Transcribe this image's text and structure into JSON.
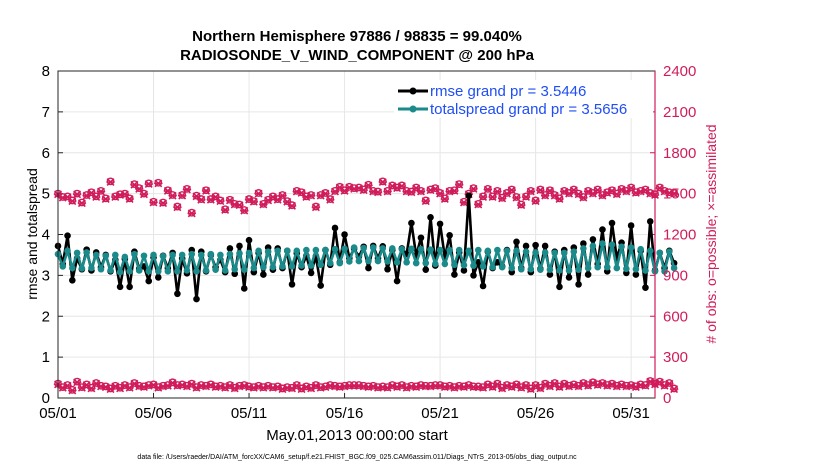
{
  "chart_data": {
    "type": "line",
    "title_line1": "Northern Hemisphere 97886 / 98835 = 99.040%",
    "title_line2": "RADIOSONDE_V_WIND_COMPONENT @ 200 hPa",
    "ylabel_left": "rmse and totalspread",
    "ylabel_right": "# of obs: o=possible; ×=assimilated",
    "xlabel": "May.01,2013 00:00:00 start",
    "footnote": "data file: /Users/raeder/DAI/ATM_forcXX/CAM6_setup/f.e21.FHIST_BGC.f09_025.CAM6assim.011/Diags_NTrS_2013-05/obs_diag_output.nc",
    "ylim_left": [
      0,
      8
    ],
    "ylim_right": [
      0,
      2400
    ],
    "xlim": [
      0,
      31.25
    ],
    "yticks_left": [
      0,
      1,
      2,
      3,
      4,
      5,
      6,
      7,
      8
    ],
    "yticks_right": [
      0,
      300,
      600,
      900,
      1200,
      1500,
      1800,
      2100,
      2400
    ],
    "xtick_values": [
      0,
      5,
      10,
      15,
      20,
      25,
      30
    ],
    "xtick_labels": [
      "05/01",
      "05/06",
      "05/11",
      "05/16",
      "05/21",
      "05/26",
      "05/31"
    ],
    "grid": true,
    "colors": {
      "rmse": "#000000",
      "spread": "#1a8a8a",
      "obs": "#d01c5b",
      "legend_text": "#1f4ef5"
    },
    "series": [
      {
        "name": "rmse grand pr = 3.5446",
        "axis": "left",
        "marker": "circle",
        "values": [
          3.72,
          3.28,
          3.97,
          2.88,
          3.42,
          3.15,
          3.63,
          3.12,
          3.56,
          3.2,
          3.5,
          3.1,
          3.38,
          2.72,
          3.4,
          2.72,
          3.58,
          3.16,
          3.22,
          2.86,
          3.44,
          2.95,
          3.48,
          3.18,
          3.55,
          2.55,
          3.41,
          3.05,
          3.62,
          2.42,
          3.58,
          3.1,
          3.5,
          3.2,
          3.38,
          3.08,
          3.66,
          3.04,
          3.72,
          2.68,
          3.86,
          3.08,
          3.55,
          3.02,
          3.68,
          3.14,
          3.66,
          3.18,
          3.6,
          2.78,
          3.54,
          3.2,
          3.48,
          3.06,
          3.47,
          2.75,
          3.62,
          3.26,
          4.16,
          3.32,
          4.0,
          3.42,
          3.65,
          3.46,
          3.7,
          3.18,
          3.72,
          3.42,
          3.71,
          3.15,
          3.62,
          2.86,
          3.66,
          3.52,
          4.28,
          3.48,
          3.92,
          3.14,
          4.42,
          3.24,
          4.26,
          3.44,
          3.98,
          3.02,
          3.56,
          3.12,
          4.95,
          3.0,
          3.32,
          2.74,
          3.58,
          3.18,
          3.32,
          3.22,
          3.62,
          3.08,
          3.82,
          3.18,
          3.72,
          3.08,
          3.74,
          3.16,
          3.72,
          3.02,
          3.58,
          2.72,
          3.62,
          2.95,
          3.68,
          2.78,
          3.78,
          3.02,
          3.88,
          3.28,
          4.12,
          3.1,
          4.28,
          3.42,
          3.8,
          3.06,
          4.22,
          3.02,
          3.6,
          2.7,
          4.32,
          3.12,
          3.55,
          3.18,
          3.6,
          3.3
        ]
      },
      {
        "name": "totalspread grand pr = 3.5656",
        "axis": "left",
        "marker": "circle",
        "values": [
          3.52,
          3.22,
          3.6,
          3.18,
          3.55,
          3.17,
          3.56,
          3.18,
          3.5,
          3.15,
          3.48,
          3.12,
          3.5,
          3.08,
          3.45,
          3.1,
          3.52,
          3.12,
          3.48,
          3.1,
          3.5,
          3.1,
          3.47,
          3.1,
          3.5,
          3.1,
          3.5,
          3.12,
          3.52,
          3.1,
          3.5,
          3.12,
          3.52,
          3.14,
          3.5,
          3.12,
          3.52,
          3.15,
          3.54,
          3.14,
          3.55,
          3.18,
          3.6,
          3.2,
          3.58,
          3.2,
          3.6,
          3.22,
          3.6,
          3.22,
          3.6,
          3.24,
          3.62,
          3.24,
          3.62,
          3.26,
          3.62,
          3.3,
          3.64,
          3.3,
          3.65,
          3.34,
          3.68,
          3.35,
          3.67,
          3.35,
          3.68,
          3.35,
          3.66,
          3.34,
          3.66,
          3.32,
          3.64,
          3.32,
          3.65,
          3.3,
          3.64,
          3.3,
          3.63,
          3.28,
          3.62,
          3.28,
          3.62,
          3.26,
          3.62,
          3.25,
          3.6,
          3.24,
          3.62,
          3.22,
          3.6,
          3.2,
          3.62,
          3.2,
          3.6,
          3.18,
          3.6,
          3.15,
          3.58,
          3.15,
          3.56,
          3.14,
          3.56,
          3.14,
          3.55,
          3.12,
          3.55,
          3.12,
          3.58,
          3.14,
          3.66,
          3.18,
          3.72,
          3.2,
          3.78,
          3.2,
          3.75,
          3.18,
          3.7,
          3.16,
          3.68,
          3.15,
          3.64,
          3.12,
          3.6,
          3.1,
          3.55,
          3.1,
          3.58,
          3.18
        ]
      },
      {
        "name": "possible",
        "axis": "right",
        "marker": "o",
        "values": [
          1500,
          1475,
          1480,
          1450,
          1500,
          1435,
          1490,
          1510,
          1480,
          1520,
          1465,
          1590,
          1480,
          1495,
          1500,
          1465,
          1570,
          1540,
          1500,
          1575,
          1440,
          1580,
          1435,
          1525,
          1490,
          1405,
          1490,
          1535,
          1360,
          1485,
          1460,
          1525,
          1460,
          1480,
          1450,
          1385,
          1455,
          1425,
          1420,
          1380,
          1460,
          1445,
          1505,
          1425,
          1455,
          1480,
          1460,
          1490,
          1445,
          1415,
          1520,
          1510,
          1480,
          1490,
          1405,
          1490,
          1505,
          1460,
          1520,
          1550,
          1525,
          1550,
          1540,
          1545,
          1530,
          1565,
          1520,
          1515,
          1590,
          1520,
          1560,
          1545,
          1560,
          1520,
          1515,
          1545,
          1520,
          1450,
          1530,
          1540,
          1505,
          1465,
          1520,
          1525,
          1570,
          1440,
          1500,
          1540,
          1425,
          1480,
          1535,
          1480,
          1520,
          1470,
          1505,
          1530,
          1475,
          1420,
          1480,
          1520,
          1450,
          1530,
          1490,
          1525,
          1490,
          1465,
          1520,
          1505,
          1530,
          1500,
          1475,
          1520,
          1505,
          1530,
          1490,
          1510,
          1525,
          1500,
          1535,
          1520,
          1545,
          1510,
          1520,
          1530,
          1505,
          1495,
          1545,
          1520,
          1510,
          1505
        ]
      },
      {
        "name": "assimilated",
        "axis": "right",
        "marker": "x",
        "values": [
          1495,
          1470,
          1475,
          1445,
          1495,
          1430,
          1485,
          1505,
          1475,
          1515,
          1460,
          1585,
          1475,
          1490,
          1495,
          1460,
          1565,
          1535,
          1495,
          1570,
          1435,
          1575,
          1430,
          1520,
          1485,
          1400,
          1485,
          1530,
          1355,
          1480,
          1455,
          1520,
          1455,
          1475,
          1445,
          1380,
          1450,
          1420,
          1415,
          1375,
          1455,
          1440,
          1500,
          1420,
          1450,
          1475,
          1455,
          1485,
          1440,
          1410,
          1515,
          1505,
          1475,
          1485,
          1400,
          1485,
          1500,
          1455,
          1515,
          1545,
          1520,
          1545,
          1535,
          1540,
          1525,
          1560,
          1515,
          1510,
          1585,
          1515,
          1555,
          1540,
          1555,
          1515,
          1510,
          1540,
          1515,
          1445,
          1525,
          1535,
          1500,
          1460,
          1515,
          1520,
          1565,
          1435,
          1495,
          1535,
          1420,
          1475,
          1530,
          1475,
          1515,
          1465,
          1500,
          1525,
          1470,
          1415,
          1475,
          1515,
          1445,
          1525,
          1485,
          1520,
          1485,
          1460,
          1515,
          1500,
          1525,
          1495,
          1470,
          1515,
          1500,
          1525,
          1485,
          1505,
          1520,
          1495,
          1530,
          1515,
          1540,
          1505,
          1515,
          1525,
          1500,
          1490,
          1540,
          1515,
          1505,
          1500
        ]
      },
      {
        "name": "possible (low)",
        "axis": "right",
        "marker": "o",
        "values": [
          105,
          80,
          95,
          60,
          120,
          80,
          100,
          75,
          110,
          90,
          85,
          70,
          90,
          75,
          95,
          80,
          110,
          90,
          85,
          95,
          100,
          80,
          90,
          95,
          115,
          95,
          100,
          90,
          105,
          80,
          95,
          90,
          100,
          85,
          90,
          80,
          95,
          75,
          90,
          95,
          85,
          80,
          90,
          80,
          90,
          80,
          85,
          70,
          80,
          75,
          95,
          70,
          85,
          75,
          95,
          80,
          85,
          95,
          90,
          85,
          90,
          95,
          95,
          95,
          90,
          85,
          90,
          80,
          85,
          80,
          95,
          85,
          95,
          80,
          90,
          85,
          95,
          90,
          90,
          95,
          95,
          85,
          90,
          80,
          90,
          85,
          95,
          85,
          85,
          80,
          100,
          85,
          105,
          75,
          95,
          85,
          100,
          80,
          95,
          70,
          95,
          75,
          105,
          90,
          110,
          85,
          105,
          90,
          100,
          90,
          110,
          95,
          115,
          100,
          110,
          95,
          105,
          90,
          100,
          90,
          95,
          85,
          100,
          95,
          125,
          105,
          120,
          95,
          110,
          70
        ]
      },
      {
        "name": "assimilated (low)",
        "axis": "right",
        "marker": "x",
        "values": [
          100,
          75,
          90,
          55,
          115,
          75,
          95,
          70,
          105,
          85,
          80,
          65,
          85,
          70,
          90,
          75,
          105,
          85,
          80,
          90,
          95,
          75,
          85,
          90,
          110,
          90,
          95,
          85,
          100,
          75,
          90,
          85,
          95,
          80,
          85,
          75,
          90,
          70,
          85,
          90,
          80,
          75,
          85,
          75,
          85,
          75,
          80,
          65,
          75,
          70,
          90,
          65,
          80,
          70,
          90,
          75,
          80,
          90,
          85,
          80,
          85,
          90,
          90,
          90,
          85,
          80,
          85,
          75,
          80,
          75,
          90,
          80,
          90,
          75,
          85,
          80,
          90,
          85,
          85,
          90,
          90,
          80,
          85,
          75,
          85,
          80,
          90,
          80,
          80,
          75,
          95,
          80,
          100,
          70,
          90,
          80,
          95,
          75,
          90,
          65,
          90,
          70,
          100,
          85,
          105,
          80,
          100,
          85,
          95,
          85,
          105,
          90,
          110,
          95,
          105,
          90,
          100,
          85,
          95,
          85,
          90,
          80,
          95,
          90,
          120,
          100,
          115,
          90,
          105,
          65
        ]
      }
    ],
    "legend": [
      {
        "label": "rmse grand pr = 3.5446",
        "series": "rmse"
      },
      {
        "label": "totalspread grand pr = 3.5656",
        "series": "spread"
      }
    ],
    "legend_position": "top-right"
  }
}
